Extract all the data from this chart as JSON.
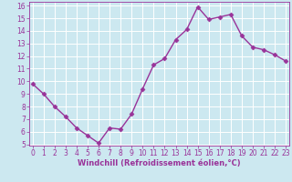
{
  "x": [
    0,
    1,
    2,
    3,
    4,
    5,
    6,
    7,
    8,
    9,
    10,
    11,
    12,
    13,
    14,
    15,
    16,
    17,
    18,
    19,
    20,
    21,
    22,
    23
  ],
  "y": [
    9.8,
    9.0,
    8.0,
    7.2,
    6.3,
    5.7,
    5.1,
    6.3,
    6.2,
    7.4,
    9.4,
    11.3,
    11.8,
    13.3,
    14.1,
    15.9,
    14.9,
    15.1,
    15.3,
    13.6,
    12.7,
    12.5,
    12.1,
    11.6
  ],
  "line_color": "#993399",
  "marker": "D",
  "marker_size": 2.5,
  "bg_color": "#cce8f0",
  "grid_color": "#ffffff",
  "xlabel": "Windchill (Refroidissement éolien,°C)",
  "ylim_min": 5,
  "ylim_max": 16,
  "xlim_min": 0,
  "xlim_max": 23,
  "yticks": [
    5,
    6,
    7,
    8,
    9,
    10,
    11,
    12,
    13,
    14,
    15,
    16
  ],
  "xticks": [
    0,
    1,
    2,
    3,
    4,
    5,
    6,
    7,
    8,
    9,
    10,
    11,
    12,
    13,
    14,
    15,
    16,
    17,
    18,
    19,
    20,
    21,
    22,
    23
  ],
  "tick_color": "#993399",
  "label_color": "#993399",
  "line_width": 1.0,
  "tick_fontsize": 5.5,
  "xlabel_fontsize": 6.0,
  "spine_color": "#993399"
}
